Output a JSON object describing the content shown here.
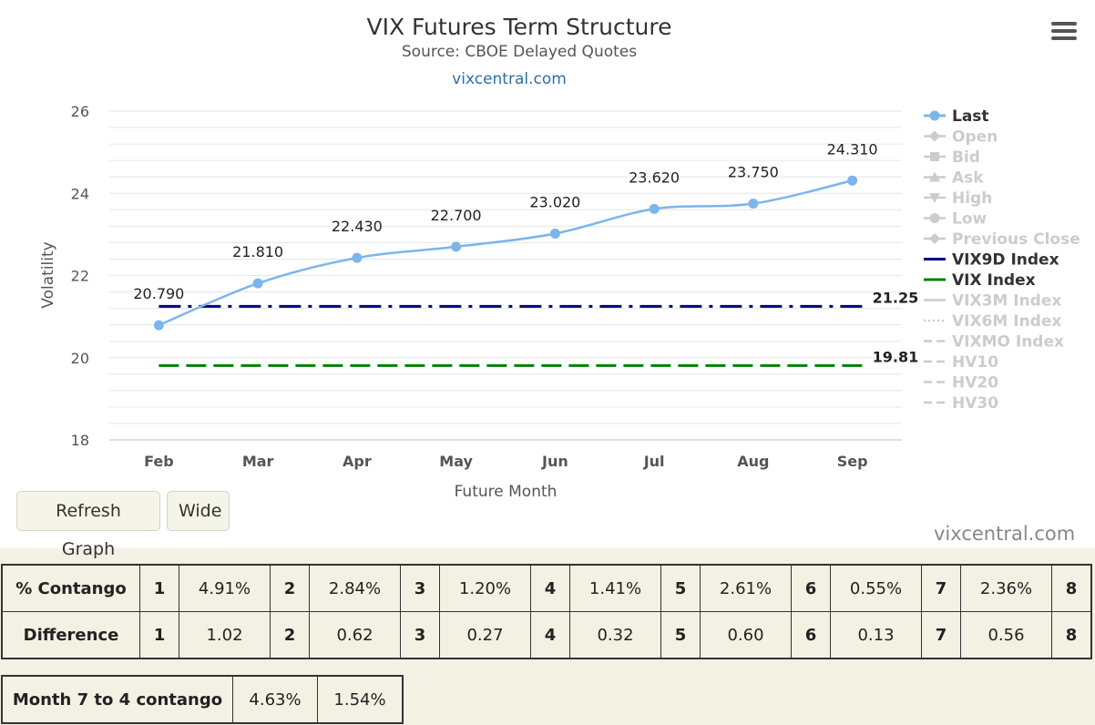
{
  "chart_data": {
    "type": "line",
    "title": "VIX Futures Term Structure",
    "subtitle": "Source: CBOE Delayed Quotes",
    "credit_link": "vixcentral.com",
    "xlabel": "Future Month",
    "ylabel": "Volatility",
    "categories": [
      "Feb",
      "Mar",
      "Apr",
      "May",
      "Jun",
      "Jul",
      "Aug",
      "Sep"
    ],
    "ylim": [
      18,
      26
    ],
    "yticks": [
      "18",
      "20",
      "22",
      "24",
      "26"
    ],
    "grid": true,
    "legend_position": "right",
    "series": [
      {
        "name": "Last",
        "values": [
          20.79,
          21.81,
          22.43,
          22.7,
          23.02,
          23.62,
          23.75,
          24.31
        ],
        "labels": [
          "20.790",
          "21.810",
          "22.430",
          "22.700",
          "23.020",
          "23.620",
          "23.750",
          "24.310"
        ],
        "color": "#7cb5ec"
      },
      {
        "name": "VIX9D Index",
        "value": 21.25,
        "label": "21.25",
        "color": "#000080"
      },
      {
        "name": "VIX Index",
        "value": 19.81,
        "label": "19.81",
        "color": "#008000"
      }
    ],
    "legend": [
      {
        "name": "Last",
        "active": true,
        "color": "#7cb5ec",
        "symbol": "circle-line"
      },
      {
        "name": "Open",
        "active": false,
        "symbol": "diamond"
      },
      {
        "name": "Bid",
        "active": false,
        "symbol": "square"
      },
      {
        "name": "Ask",
        "active": false,
        "symbol": "triangle"
      },
      {
        "name": "High",
        "active": false,
        "symbol": "triangle-down"
      },
      {
        "name": "Low",
        "active": false,
        "symbol": "circle"
      },
      {
        "name": "Previous Close",
        "active": false,
        "symbol": "diamond"
      },
      {
        "name": "VIX9D Index",
        "active": true,
        "color": "#000080",
        "symbol": "line"
      },
      {
        "name": "VIX Index",
        "active": true,
        "color": "#008000",
        "symbol": "line"
      },
      {
        "name": "VIX3M Index",
        "active": false,
        "symbol": "line"
      },
      {
        "name": "VIX6M Index",
        "active": false,
        "symbol": "dotted"
      },
      {
        "name": "VIXMO Index",
        "active": false,
        "symbol": "dashed"
      },
      {
        "name": "HV10",
        "active": false,
        "symbol": "dashed"
      },
      {
        "name": "HV20",
        "active": false,
        "symbol": "dashed"
      },
      {
        "name": "HV30",
        "active": false,
        "symbol": "dashed"
      }
    ]
  },
  "buttons": {
    "refresh": "Refresh Graph",
    "wide": "Wide"
  },
  "watermark": "vixcentral.com",
  "icons": {
    "menu": "hamburger-menu-icon"
  },
  "contango_table": {
    "rows": [
      {
        "label": "% Contango",
        "cells": [
          [
            "1",
            "4.91%"
          ],
          [
            "2",
            "2.84%"
          ],
          [
            "3",
            "1.20%"
          ],
          [
            "4",
            "1.41%"
          ],
          [
            "5",
            "2.61%"
          ],
          [
            "6",
            "0.55%"
          ],
          [
            "7",
            "2.36%"
          ]
        ],
        "last_index": "8"
      },
      {
        "label": "Difference",
        "cells": [
          [
            "1",
            "1.02"
          ],
          [
            "2",
            "0.62"
          ],
          [
            "3",
            "0.27"
          ],
          [
            "4",
            "0.32"
          ],
          [
            "5",
            "0.60"
          ],
          [
            "6",
            "0.13"
          ],
          [
            "7",
            "0.56"
          ]
        ],
        "last_index": "8"
      }
    ]
  },
  "month_table": {
    "label": "Month 7 to 4 contango",
    "values": [
      "4.63%",
      "1.54%"
    ]
  }
}
